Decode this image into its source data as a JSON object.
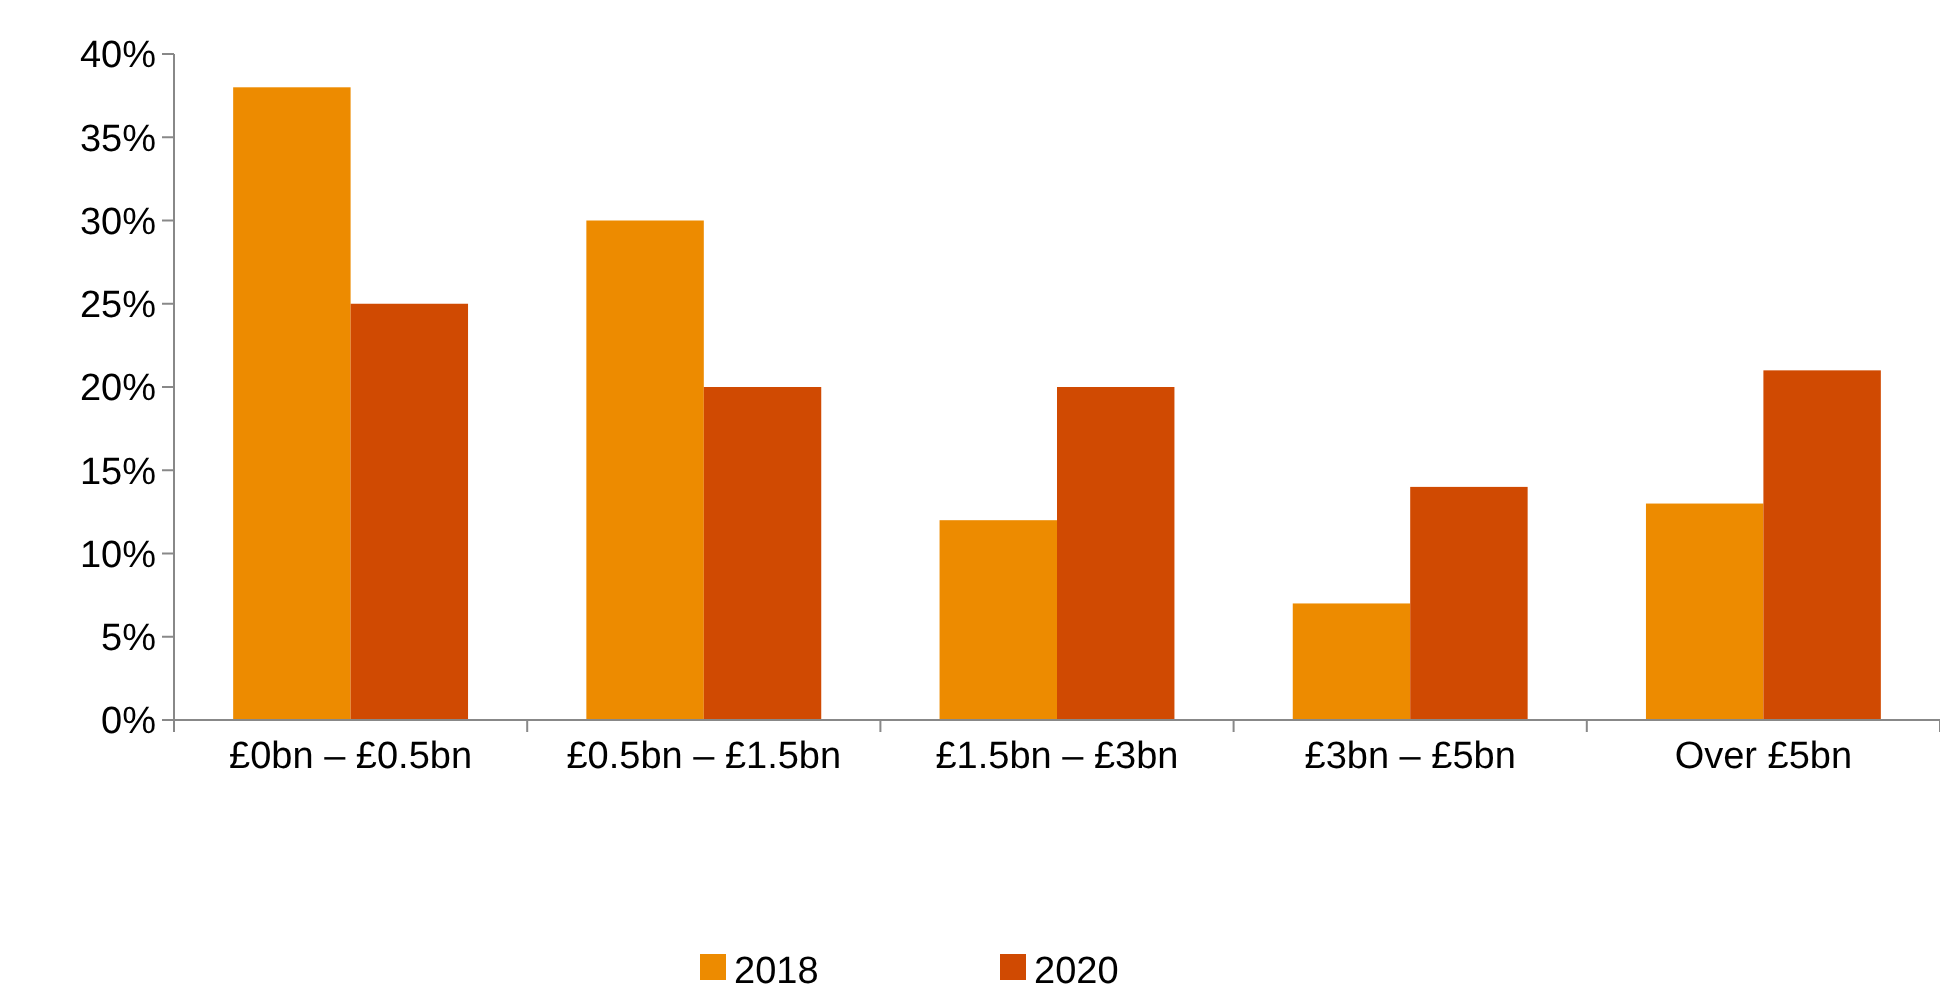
{
  "chart_data": {
    "type": "bar",
    "categories": [
      "£0bn – £0.5bn",
      "£0.5bn – £1.5bn",
      "£1.5bn – £3bn",
      "£3bn – £5bn",
      "Over £5bn"
    ],
    "series": [
      {
        "name": "2018",
        "color": "#ed8b00",
        "values": [
          38,
          30,
          12,
          7,
          13
        ]
      },
      {
        "name": "2020",
        "color": "#d04a02",
        "values": [
          25,
          20,
          20,
          14,
          21
        ]
      }
    ],
    "ylim": [
      0,
      40
    ],
    "yticks": [
      {
        "value": 0,
        "label": "0%"
      },
      {
        "value": 5,
        "label": "5%"
      },
      {
        "value": 10,
        "label": "10%"
      },
      {
        "value": 15,
        "label": "15%"
      },
      {
        "value": 20,
        "label": "20%"
      },
      {
        "value": 25,
        "label": "25%"
      },
      {
        "value": 30,
        "label": "30%"
      },
      {
        "value": 35,
        "label": "35%"
      },
      {
        "value": 40,
        "label": "40%"
      }
    ],
    "grid": false,
    "legend": "bottom"
  }
}
